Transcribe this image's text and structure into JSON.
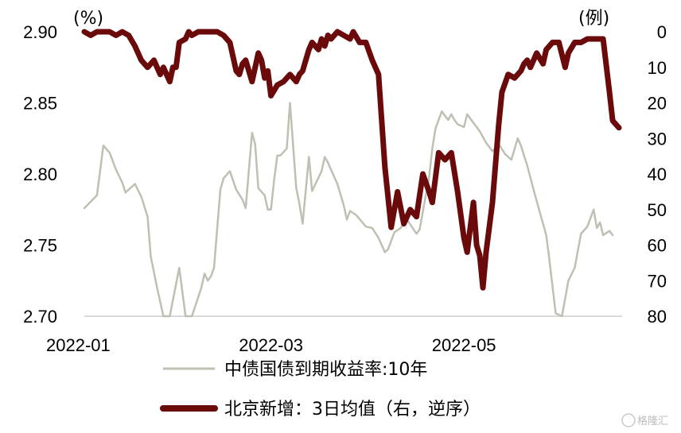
{
  "chart_data": {
    "type": "line",
    "left_axis": {
      "unit": "(%)",
      "ticks": [
        "2.90",
        "2.85",
        "2.80",
        "2.75",
        "2.70"
      ],
      "ylim": [
        2.7,
        2.9
      ]
    },
    "right_axis": {
      "unit": "(例)",
      "ticks": [
        "0",
        "10",
        "20",
        "30",
        "40",
        "50",
        "60",
        "70",
        "80"
      ],
      "ylim": [
        0,
        80
      ],
      "inverted": true
    },
    "x_ticks": [
      "2022-01",
      "2022-03",
      "2022-05"
    ],
    "x_range": [
      "2022-01-01",
      "2022-06-20"
    ],
    "series": [
      {
        "name": "中债国债到期收益率:10年",
        "axis": "left",
        "color": "#bfbfb2",
        "x": [
          "2022-01-01",
          "2022-01-05",
          "2022-01-07",
          "2022-01-09",
          "2022-01-11",
          "2022-01-13",
          "2022-01-14",
          "2022-01-15",
          "2022-01-17",
          "2022-01-19",
          "2022-01-21",
          "2022-01-22",
          "2022-01-24",
          "2022-01-26",
          "2022-01-27",
          "2022-01-28",
          "2022-01-31",
          "2022-02-02",
          "2022-02-04",
          "2022-02-07",
          "2022-02-08",
          "2022-02-09",
          "2022-02-10",
          "2022-02-11",
          "2022-02-13",
          "2022-02-14",
          "2022-02-16",
          "2022-02-18",
          "2022-02-20",
          "2022-02-21",
          "2022-02-23",
          "2022-02-24",
          "2022-02-25",
          "2022-02-27",
          "2022-02-28",
          "2022-03-01",
          "2022-03-02",
          "2022-03-03",
          "2022-03-04",
          "2022-03-06",
          "2022-03-07",
          "2022-03-09",
          "2022-03-10",
          "2022-03-11",
          "2022-03-13",
          "2022-03-14",
          "2022-03-17",
          "2022-03-18",
          "2022-03-19",
          "2022-03-21",
          "2022-03-22",
          "2022-03-24",
          "2022-03-25",
          "2022-03-26",
          "2022-03-28",
          "2022-03-31",
          "2022-04-02",
          "2022-04-04",
          "2022-04-06",
          "2022-04-07",
          "2022-04-09",
          "2022-04-11",
          "2022-04-13",
          "2022-04-16",
          "2022-04-17",
          "2022-04-20",
          "2022-04-21",
          "2022-04-22",
          "2022-04-24",
          "2022-04-26",
          "2022-04-27",
          "2022-04-28",
          "2022-04-29",
          "2022-05-01",
          "2022-05-02",
          "2022-05-04",
          "2022-05-06",
          "2022-05-07",
          "2022-05-08",
          "2022-05-10",
          "2022-05-12",
          "2022-05-14",
          "2022-05-16",
          "2022-05-18",
          "2022-05-19",
          "2022-05-20",
          "2022-05-21",
          "2022-05-23",
          "2022-05-25",
          "2022-05-27",
          "2022-05-28",
          "2022-05-30",
          "2022-06-01",
          "2022-06-03",
          "2022-06-05",
          "2022-06-07",
          "2022-06-09",
          "2022-06-11",
          "2022-06-12",
          "2022-06-13",
          "2022-06-14",
          "2022-06-16",
          "2022-06-17"
        ],
        "values": [
          2.776,
          2.785,
          2.82,
          2.815,
          2.803,
          2.794,
          2.787,
          2.789,
          2.793,
          2.784,
          2.77,
          2.742,
          2.72,
          2.7,
          2.69,
          2.688,
          2.734,
          2.7,
          2.7,
          2.72,
          2.73,
          2.725,
          2.728,
          2.734,
          2.789,
          2.797,
          2.802,
          2.789,
          2.782,
          2.776,
          2.829,
          2.821,
          2.79,
          2.785,
          2.775,
          2.775,
          2.796,
          2.813,
          2.813,
          2.818,
          2.85,
          2.79,
          2.779,
          2.765,
          2.812,
          2.788,
          2.802,
          2.812,
          2.808,
          2.798,
          2.793,
          2.778,
          2.768,
          2.774,
          2.771,
          2.763,
          2.762,
          2.755,
          2.745,
          2.747,
          2.759,
          2.762,
          2.768,
          2.758,
          2.761,
          2.798,
          2.818,
          2.832,
          2.844,
          2.838,
          2.842,
          2.838,
          2.835,
          2.833,
          2.842,
          2.836,
          2.83,
          2.826,
          2.822,
          2.816,
          2.821,
          2.814,
          2.81,
          2.825,
          2.82,
          2.813,
          2.806,
          2.789,
          2.773,
          2.757,
          2.74,
          2.702,
          2.697,
          2.725,
          2.734,
          2.758,
          2.763,
          2.775,
          2.762,
          2.766,
          2.757,
          2.76,
          2.757
        ]
      },
      {
        "name": "北京新增：3日均值（右，逆序）",
        "axis": "right",
        "color": "#6b0a0a",
        "x": [
          "2022-01-01",
          "2022-01-03",
          "2022-01-05",
          "2022-01-07",
          "2022-01-09",
          "2022-01-11",
          "2022-01-13",
          "2022-01-15",
          "2022-01-17",
          "2022-01-19",
          "2022-01-21",
          "2022-01-23",
          "2022-01-25",
          "2022-01-26",
          "2022-01-28",
          "2022-01-29",
          "2022-01-30",
          "2022-01-31",
          "2022-02-02",
          "2022-02-03",
          "2022-02-04",
          "2022-02-06",
          "2022-02-08",
          "2022-02-10",
          "2022-02-12",
          "2022-02-14",
          "2022-02-16",
          "2022-02-18",
          "2022-02-19",
          "2022-02-20",
          "2022-02-21",
          "2022-02-23",
          "2022-02-25",
          "2022-02-26",
          "2022-02-27",
          "2022-02-28",
          "2022-03-01",
          "2022-03-03",
          "2022-03-05",
          "2022-03-07",
          "2022-03-09",
          "2022-03-10",
          "2022-03-11",
          "2022-03-13",
          "2022-03-14",
          "2022-03-16",
          "2022-03-17",
          "2022-03-18",
          "2022-03-19",
          "2022-03-20",
          "2022-03-22",
          "2022-03-24",
          "2022-03-26",
          "2022-03-27",
          "2022-03-29",
          "2022-03-31",
          "2022-04-02",
          "2022-04-04",
          "2022-04-06",
          "2022-04-08",
          "2022-04-10",
          "2022-04-12",
          "2022-04-14",
          "2022-04-16",
          "2022-04-18",
          "2022-04-20",
          "2022-04-21",
          "2022-04-23",
          "2022-04-25",
          "2022-04-27",
          "2022-04-29",
          "2022-05-01",
          "2022-05-02",
          "2022-05-04",
          "2022-05-05",
          "2022-05-06",
          "2022-05-07",
          "2022-05-08",
          "2022-05-10",
          "2022-05-12",
          "2022-05-13",
          "2022-05-15",
          "2022-05-17",
          "2022-05-18",
          "2022-05-19",
          "2022-05-20",
          "2022-05-21",
          "2022-05-22",
          "2022-05-24",
          "2022-05-26",
          "2022-05-27",
          "2022-05-29",
          "2022-05-31",
          "2022-06-02",
          "2022-06-03",
          "2022-06-05",
          "2022-06-07",
          "2022-06-09",
          "2022-06-10",
          "2022-06-12",
          "2022-06-14",
          "2022-06-16",
          "2022-06-17",
          "2022-06-19"
        ],
        "values": [
          0,
          1,
          0,
          0,
          0,
          1,
          0,
          1,
          4,
          8,
          10,
          8,
          12,
          10,
          14,
          10,
          10,
          3,
          2,
          0,
          1,
          0,
          0,
          0,
          0,
          1,
          3,
          11,
          12,
          9,
          8,
          14,
          6,
          8,
          13,
          11,
          18,
          15,
          14,
          12,
          14,
          12,
          11,
          5,
          3,
          5,
          2,
          4,
          1,
          2,
          0,
          1,
          2,
          0,
          3,
          3,
          8,
          12,
          38,
          55,
          45,
          54,
          50,
          52,
          40,
          45,
          48,
          34,
          36,
          34,
          45,
          58,
          62,
          48,
          60,
          63,
          72,
          62,
          48,
          26,
          17,
          12,
          13,
          12,
          11,
          9,
          8,
          10,
          6,
          9,
          5,
          3,
          3,
          10,
          6,
          3,
          3,
          2,
          2,
          2,
          2,
          17,
          25,
          27
        ]
      }
    ]
  },
  "legend": [
    {
      "label": "中债国债到期收益率:10年"
    },
    {
      "label": "北京新增：3日均值（右，逆序）"
    }
  ],
  "watermark": "格隆汇",
  "colors": {
    "yield_line": "#bfbfb2",
    "cases_line": "#6b0a0a",
    "baseline": "#d9d9d9"
  }
}
